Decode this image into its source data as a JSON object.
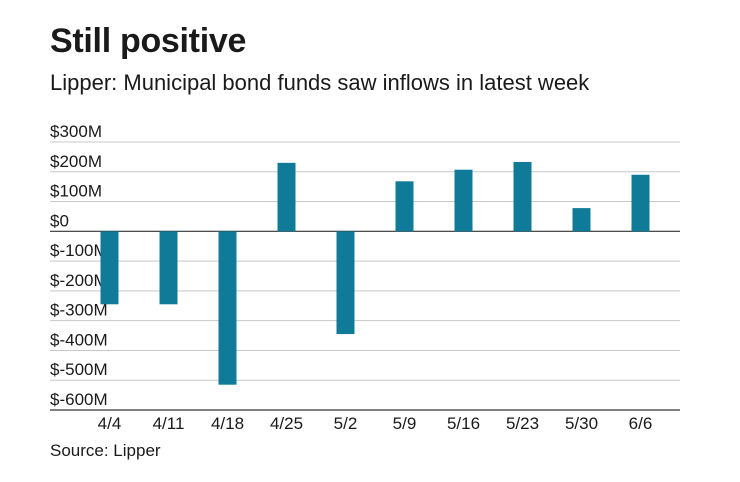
{
  "chart_data": {
    "type": "bar",
    "title": "Still positive",
    "subtitle": "Lipper: Municipal bond funds saw inflows in latest week",
    "source": "Source: Lipper",
    "xlabel": "",
    "ylabel": "",
    "categories": [
      "4/4",
      "4/11",
      "4/18",
      "4/25",
      "5/2",
      "5/9",
      "5/16",
      "5/23",
      "5/30",
      "6/6"
    ],
    "values": [
      -245,
      -245,
      -515,
      230,
      -345,
      168,
      207,
      233,
      78,
      190
    ],
    "unit": "$M",
    "ylim": [
      -600,
      300
    ],
    "yticks": [
      300,
      200,
      100,
      0,
      -100,
      -200,
      -300,
      -400,
      -500,
      -600
    ],
    "ytick_labels": [
      "$300M",
      "$200M",
      "$100M",
      "$0",
      "$-100M",
      "$-200M",
      "$-300M",
      "$-400M",
      "$-500M",
      "$-600M"
    ],
    "grid": true,
    "colors": {
      "bar": "#0f7b99",
      "grid": "#c8c8c8",
      "axis": "#333333"
    }
  }
}
